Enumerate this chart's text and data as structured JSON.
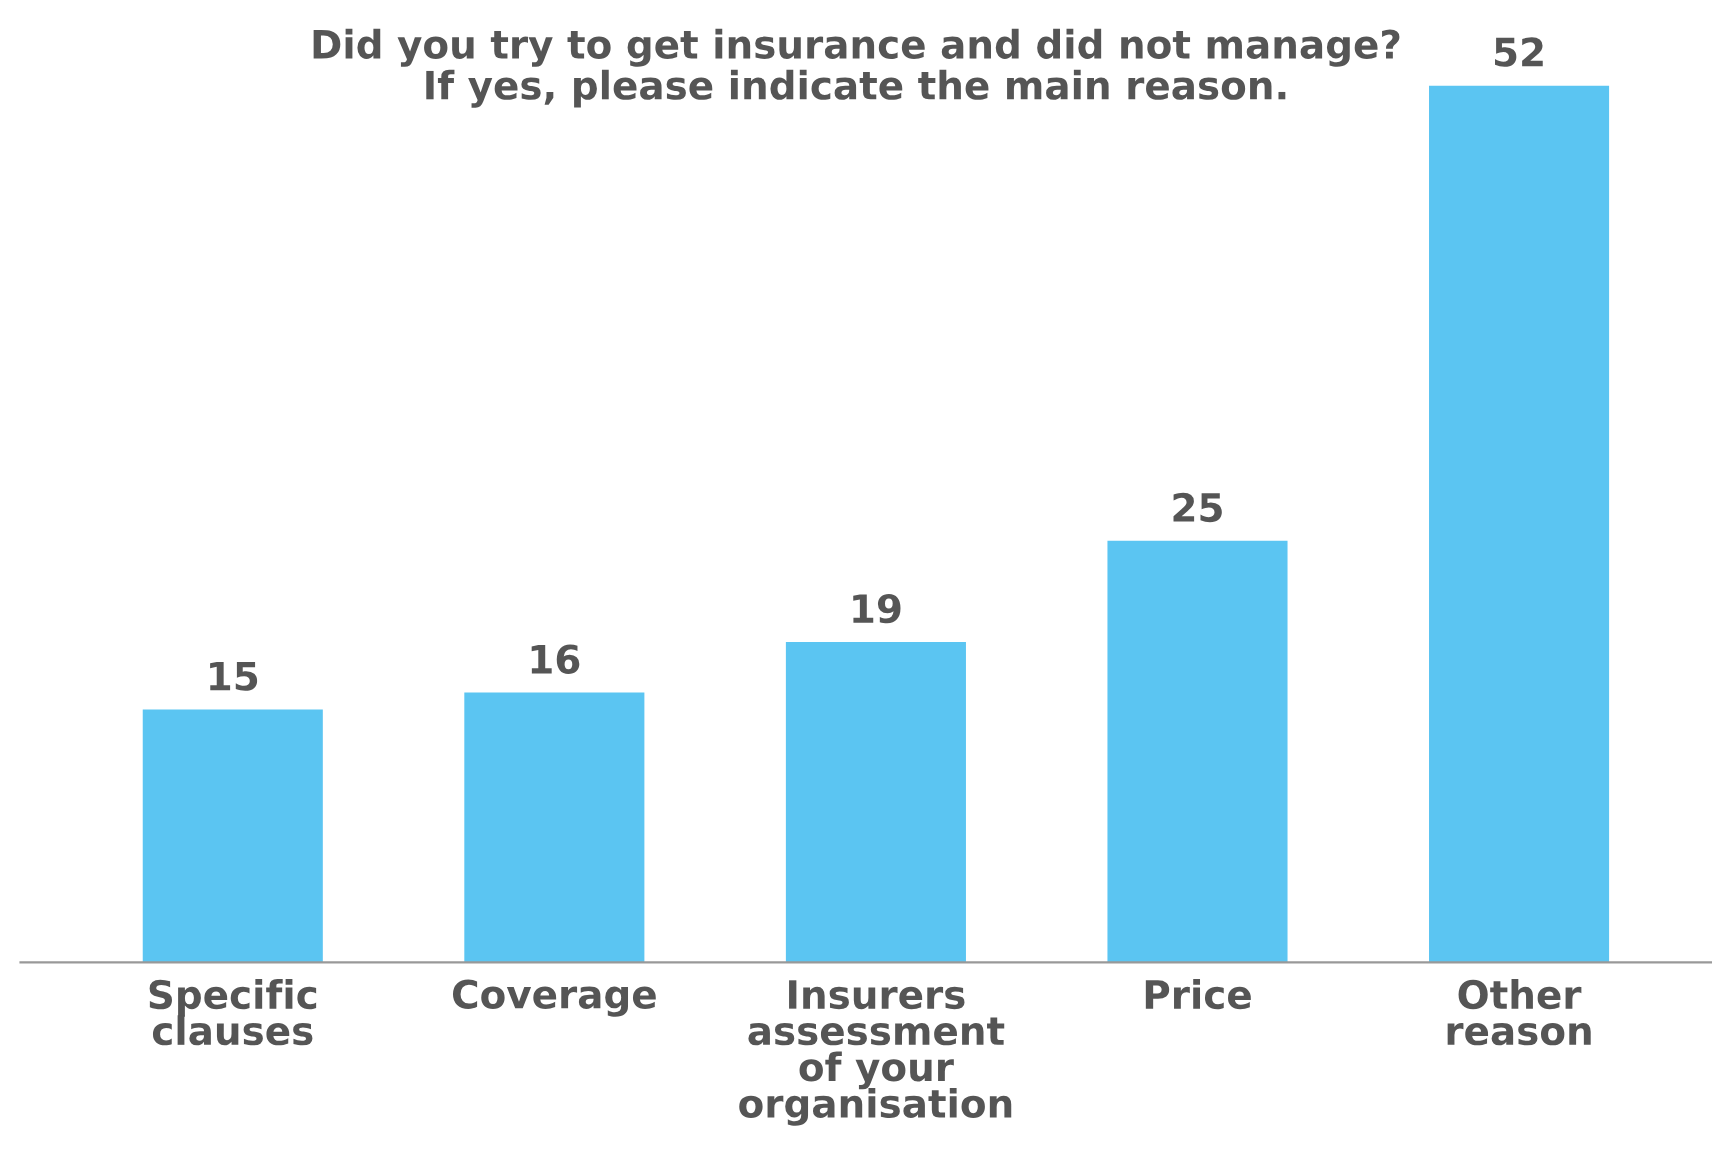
{
  "chart_data": {
    "type": "bar",
    "title": "Did you try to get insurance and did not manage?\nIf yes, please indicate the main reason.",
    "categories": [
      "Specific\nclauses",
      "Coverage",
      "Insurers\nassessment\nof your\norganisation",
      "Price",
      "Other\nreason"
    ],
    "values": [
      15,
      16,
      19,
      25,
      52
    ],
    "color": "#5bc5f2",
    "data_labels": true,
    "grid": false,
    "legend": false
  }
}
